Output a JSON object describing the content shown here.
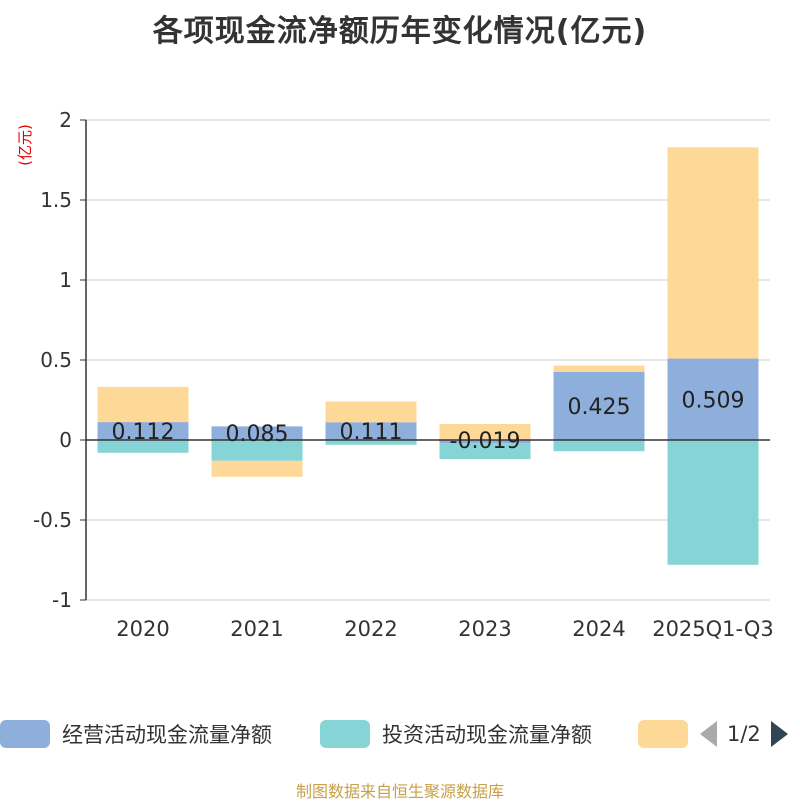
{
  "chart_data": {
    "type": "bar",
    "stacked": true,
    "title": "各项现金流净额历年变化情况(亿元)",
    "ylabel": "(亿元)",
    "ylim": [
      -1,
      2
    ],
    "yticks": [
      -1,
      -0.5,
      0,
      0.5,
      1,
      1.5,
      2
    ],
    "ytick_labels": [
      "-1",
      "-0.5",
      "0",
      "0.5",
      "1",
      "1.5",
      "2"
    ],
    "categories": [
      "2020",
      "2021",
      "2022",
      "2023",
      "2024",
      "2025Q1-Q3"
    ],
    "series": [
      {
        "name": "经营活动现金流量净额",
        "color": "#8eaedb",
        "values": [
          0.112,
          0.085,
          0.111,
          -0.019,
          0.425,
          0.509
        ],
        "labels": [
          "0.112",
          "0.085",
          "0.111",
          "-0.019",
          "0.425",
          "0.509"
        ]
      },
      {
        "name": "投资活动现金流量净额",
        "color": "#86d4d6",
        "values": [
          -0.08,
          -0.13,
          -0.03,
          -0.1,
          -0.07,
          -0.78
        ]
      },
      {
        "name": "",
        "color": "#fdd896",
        "values": [
          0.22,
          -0.1,
          0.13,
          0.1,
          0.04,
          1.32
        ]
      }
    ],
    "legend_position": "bottom",
    "pager": "1/2"
  },
  "source": "制图数据来自恒生聚源数据库"
}
